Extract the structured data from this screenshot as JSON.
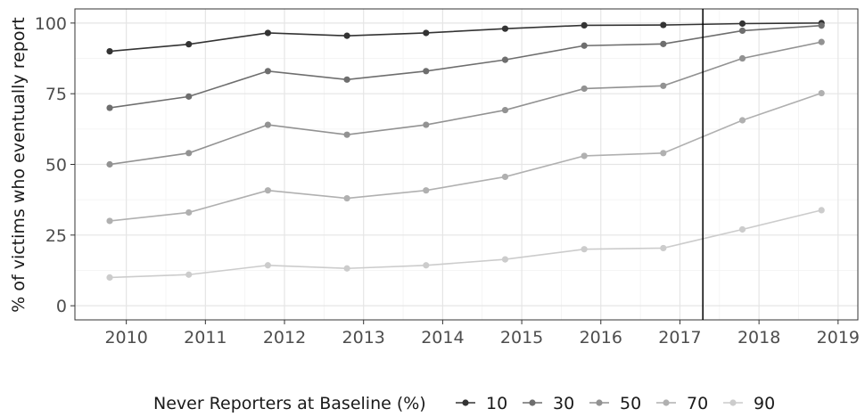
{
  "chart_data": {
    "type": "line",
    "title": "",
    "xlabel": "",
    "ylabel": "% of victims who eventually report",
    "x_tick_labels": [
      "2010",
      "2011",
      "2012",
      "2013",
      "2014",
      "2015",
      "2016",
      "2017",
      "2018",
      "2019"
    ],
    "y_tick_labels": [
      "0",
      "25",
      "50",
      "75",
      "100"
    ],
    "xlim": [
      2009.35,
      2019.25
    ],
    "ylim": [
      -5,
      105
    ],
    "grid": true,
    "vertical_reference_line": 2017.29,
    "legend": {
      "title": "Never Reporters at Baseline (%)",
      "position": "bottom",
      "items": [
        "10",
        "30",
        "50",
        "70",
        "90"
      ]
    },
    "x": [
      2009.79,
      2010.79,
      2011.79,
      2012.79,
      2013.79,
      2014.79,
      2015.79,
      2016.79,
      2017.79,
      2018.79
    ],
    "series": [
      {
        "name": "10",
        "color": "#333333",
        "values": [
          90,
          92.5,
          96.5,
          95.5,
          96.5,
          98,
          99.2,
          99.3,
          99.8,
          100
        ]
      },
      {
        "name": "30",
        "color": "#6e6e6e",
        "values": [
          70,
          74,
          83,
          80,
          83,
          87,
          92,
          92.6,
          97.3,
          99.1
        ]
      },
      {
        "name": "50",
        "color": "#929292",
        "values": [
          50,
          54,
          64,
          60.5,
          64,
          69.2,
          76.8,
          77.8,
          87.5,
          93.3
        ]
      },
      {
        "name": "70",
        "color": "#b0b0b0",
        "values": [
          30,
          33,
          40.8,
          38,
          40.8,
          45.6,
          53,
          54,
          65.6,
          75.2
        ]
      },
      {
        "name": "90",
        "color": "#cccccc",
        "values": [
          10,
          11,
          14.3,
          13.2,
          14.3,
          16.4,
          20,
          20.4,
          27,
          33.8
        ]
      }
    ]
  }
}
